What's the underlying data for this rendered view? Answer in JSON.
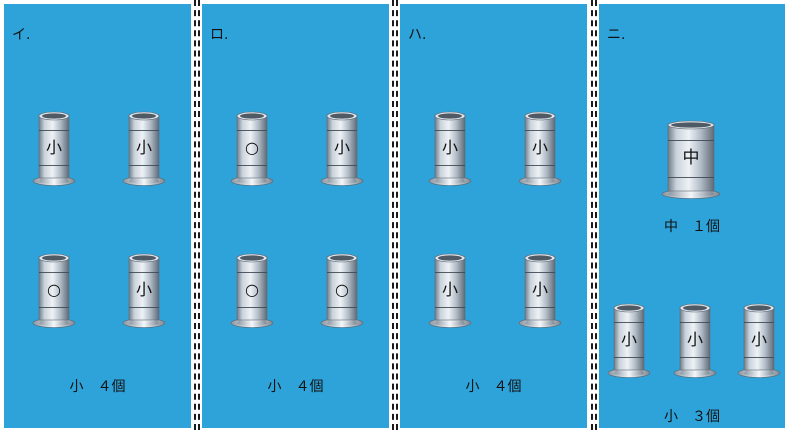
{
  "panels": [
    {
      "label": "イ.",
      "items": [
        "小",
        "小",
        "○",
        "小"
      ],
      "caption": "小　４個"
    },
    {
      "label": "ロ.",
      "items": [
        "○",
        "小",
        "○",
        "○"
      ],
      "caption": "小　４個"
    },
    {
      "label": "ハ.",
      "items": [
        "小",
        "小",
        "小",
        "小"
      ],
      "caption": "小　４個"
    },
    {
      "label": "ニ.",
      "large_item": "中",
      "large_caption": "中　１個",
      "items": [
        "小",
        "小",
        "小"
      ],
      "caption": "小　３個"
    }
  ],
  "colors": {
    "panel_background": "#2ea3d9",
    "sleeve_metal": "#b9c4cf"
  },
  "icons": [
    "ring-sleeve-icon"
  ]
}
